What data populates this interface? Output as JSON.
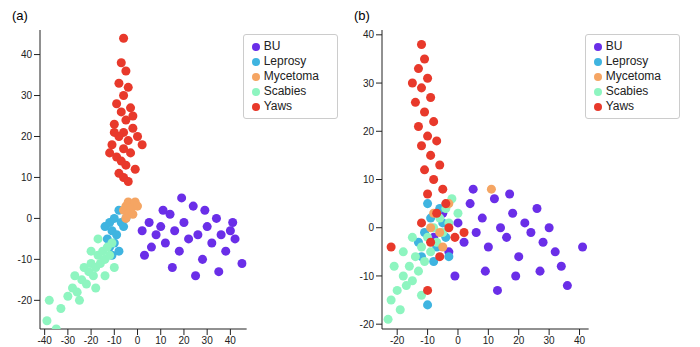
{
  "chart_data": [
    {
      "type": "scatter",
      "title": "(a)",
      "legend": "upper right",
      "xlim": [
        -42,
        47
      ],
      "xticks": [
        -40,
        -30,
        -20,
        -10,
        0,
        10,
        20,
        30,
        40
      ],
      "ylim": [
        -27,
        46
      ],
      "yticks": [
        -20,
        -10,
        0,
        10,
        20,
        30,
        40
      ],
      "series": [
        {
          "name": "BU",
          "color": "#6a2ee8",
          "x": [
            2,
            5,
            8,
            10,
            12,
            14,
            16,
            18,
            20,
            22,
            24,
            26,
            28,
            30,
            32,
            34,
            36,
            38,
            40,
            42,
            45,
            6,
            15,
            25,
            19,
            11,
            3,
            35,
            29,
            41
          ],
          "y": [
            -3,
            -1,
            -4,
            -2,
            -6,
            1,
            -3,
            -8,
            -1,
            -5,
            3,
            -4,
            -10,
            -2,
            -6,
            0,
            -4,
            -8,
            -3,
            -5,
            -11,
            -7,
            -12,
            -14,
            5,
            2,
            -9,
            -13,
            2,
            -1
          ]
        },
        {
          "name": "Leprosy",
          "color": "#3fb4e0",
          "x": [
            -14,
            -12,
            -10,
            -8,
            -13,
            -11,
            -9,
            -7,
            -12,
            -10,
            -8,
            -6,
            -5,
            -4,
            -11
          ],
          "y": [
            -2,
            -1,
            0,
            2,
            -5,
            -3,
            -4,
            -1,
            -7,
            -6,
            -8,
            -2,
            0,
            1,
            -9
          ]
        },
        {
          "name": "Scabies",
          "color": "#8ef5c0",
          "x": [
            -39,
            -38,
            -35,
            -33,
            -30,
            -28,
            -26,
            -24,
            -22,
            -21,
            -20,
            -19,
            -18,
            -17,
            -16,
            -15,
            -14,
            -13,
            -12,
            -11,
            -20,
            -23,
            -25,
            -17,
            -10,
            -27,
            -14,
            -18
          ],
          "y": [
            -25,
            -20,
            -27,
            -22,
            -19,
            -17,
            -18,
            -15,
            -16,
            -13,
            -11,
            -14,
            -12,
            -9,
            -11,
            -8,
            -10,
            -7,
            -9,
            -6,
            -8,
            -12,
            -20,
            -5,
            -12,
            -14,
            -14,
            -17
          ]
        },
        {
          "name": "Mycetoma",
          "color": "#f5a563",
          "x": [
            -6,
            -5,
            -4,
            -3,
            -2,
            -1,
            0,
            -4,
            -2,
            -5
          ],
          "y": [
            2,
            3,
            4,
            2,
            3,
            4,
            3,
            1,
            1,
            0
          ]
        },
        {
          "name": "Yaws",
          "color": "#e8392b",
          "x": [
            -6,
            -7,
            -5,
            -8,
            -4,
            -6,
            -9,
            -3,
            -7,
            -5,
            -10,
            -2,
            -6,
            -8,
            -4,
            -11,
            -6,
            -3,
            -9,
            -7,
            -5,
            -1,
            -8,
            -6,
            -4,
            -12,
            0,
            -2,
            -10,
            2
          ],
          "y": [
            44,
            38,
            36,
            33,
            32,
            30,
            28,
            27,
            26,
            24,
            23,
            22,
            21,
            20,
            19,
            18,
            17,
            16,
            15,
            14,
            13,
            12,
            11,
            10,
            9,
            16,
            20,
            25,
            21,
            18
          ]
        }
      ]
    },
    {
      "type": "scatter",
      "title": "(b)",
      "legend": "upper right",
      "xlim": [
        -25,
        43
      ],
      "xticks": [
        -20,
        -10,
        0,
        10,
        20,
        30,
        40
      ],
      "ylim": [
        -21,
        41
      ],
      "yticks": [
        -20,
        -10,
        0,
        10,
        20,
        30,
        40
      ],
      "series": [
        {
          "name": "BU",
          "color": "#6a2ee8",
          "x": [
            -8,
            -5,
            -3,
            0,
            2,
            4,
            6,
            8,
            10,
            12,
            14,
            16,
            18,
            20,
            22,
            24,
            26,
            28,
            30,
            32,
            34,
            36,
            41,
            9,
            13,
            5,
            -1,
            19,
            27,
            17
          ],
          "y": [
            -2,
            3,
            -5,
            1,
            -3,
            5,
            -1,
            2,
            -4,
            6,
            0,
            -2,
            3,
            -6,
            1,
            -1,
            4,
            -3,
            0,
            -5,
            -8,
            -12,
            -4,
            -9,
            -13,
            8,
            -10,
            -10,
            -9,
            7
          ]
        },
        {
          "name": "Leprosy",
          "color": "#3fb4e0",
          "x": [
            -13,
            -11,
            -9,
            -7,
            -5,
            -12,
            -8,
            -4,
            -10,
            -10,
            -6,
            -3
          ],
          "y": [
            -3,
            -1,
            2,
            -4,
            1,
            -6,
            -7,
            -2,
            5,
            -16,
            4,
            -6
          ]
        },
        {
          "name": "Scabies",
          "color": "#8ef5c0",
          "x": [
            -23,
            -22,
            -20,
            -19,
            -18,
            -17,
            -16,
            -15,
            -14,
            -13,
            -12,
            -11,
            -10,
            -9,
            -8,
            -7,
            -6,
            -5,
            -4,
            -3,
            -2,
            -21,
            -15,
            -12,
            -18,
            0
          ],
          "y": [
            -19,
            -15,
            -13,
            -17,
            -10,
            -12,
            -8,
            -11,
            -6,
            -9,
            -4,
            -7,
            -2,
            -5,
            0,
            -3,
            2,
            -1,
            4,
            1,
            6,
            -8,
            -2,
            -14,
            -5,
            3
          ]
        },
        {
          "name": "Mycetoma",
          "color": "#f5a563",
          "x": [
            -8,
            -6,
            -3,
            11,
            -5,
            -9
          ],
          "y": [
            3,
            -1,
            5,
            8,
            -4,
            0
          ]
        },
        {
          "name": "Yaws",
          "color": "#e8392b",
          "x": [
            -12,
            -11,
            -13,
            -10,
            -12,
            -9,
            -14,
            -11,
            -8,
            -13,
            -10,
            -7,
            -12,
            -9,
            -6,
            -11,
            -8,
            -5,
            -10,
            -4,
            -7,
            -12,
            -3,
            -9,
            -6,
            -10,
            -22,
            -1,
            2,
            -15
          ],
          "y": [
            38,
            35,
            33,
            31,
            29,
            27,
            26,
            24,
            22,
            21,
            19,
            18,
            17,
            15,
            13,
            12,
            10,
            8,
            7,
            5,
            3,
            1,
            0,
            -3,
            -6,
            -13,
            -4,
            -2,
            -1,
            30
          ]
        }
      ]
    }
  ]
}
